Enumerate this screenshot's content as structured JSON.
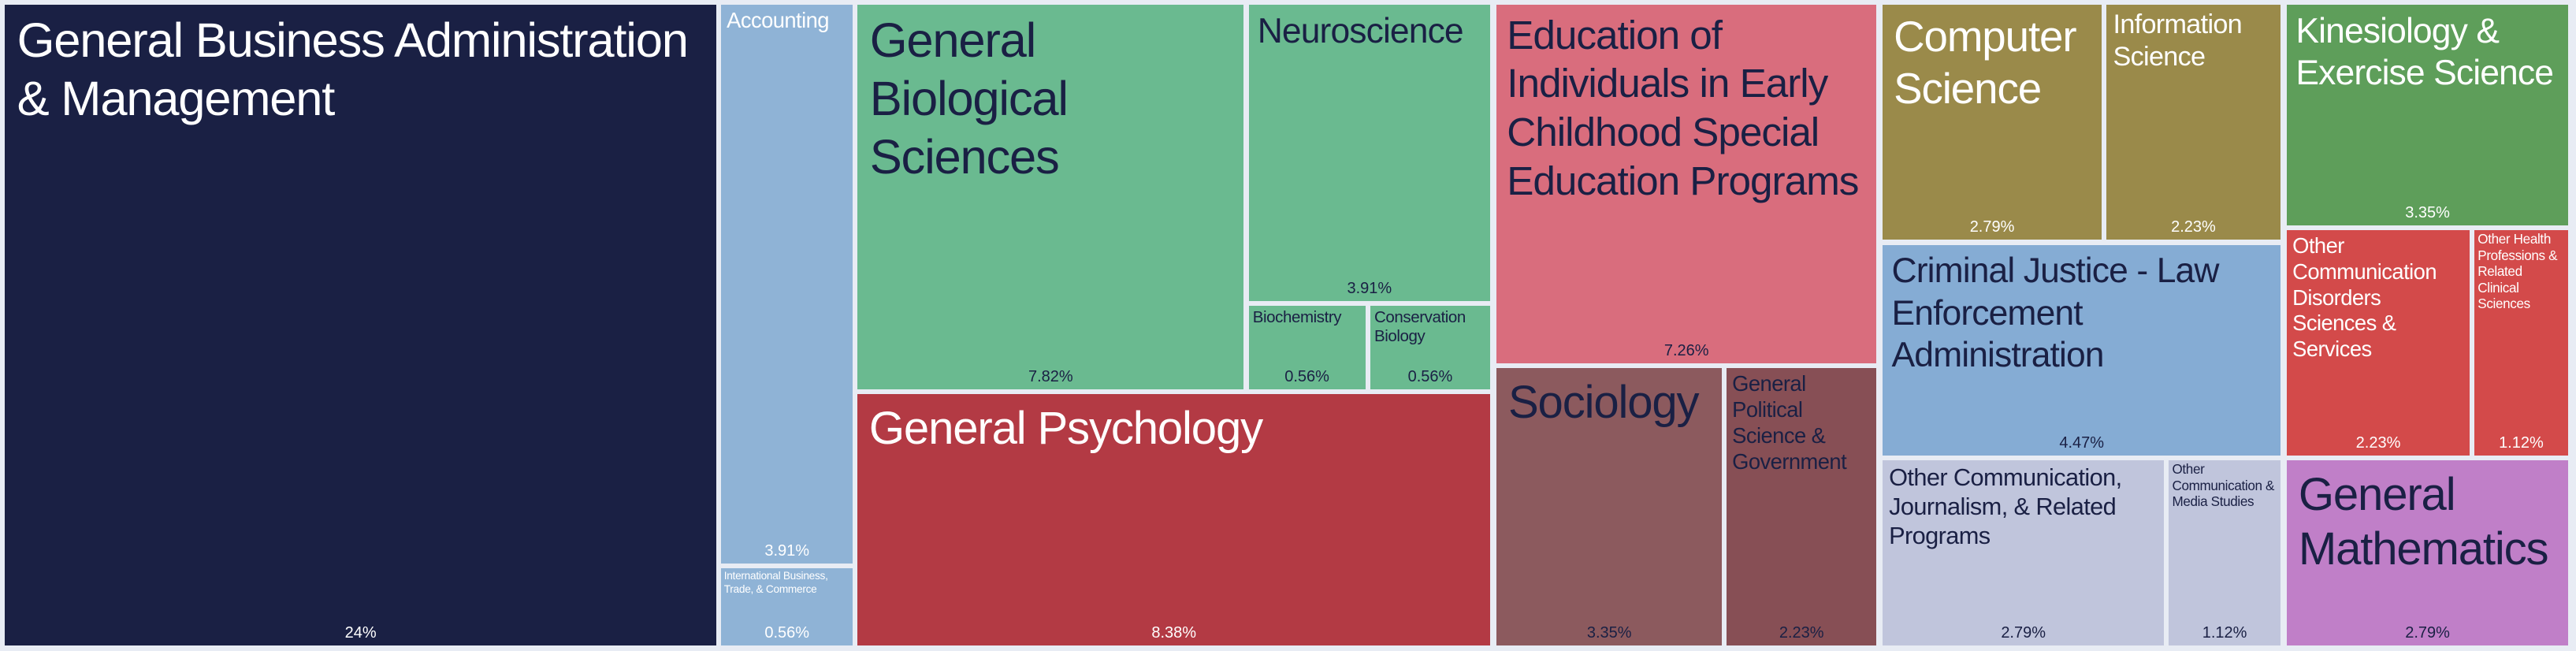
{
  "chart_data": {
    "type": "treemap",
    "items": [
      {
        "name": "General Business Administration & Management",
        "value": 24,
        "value_label": "24%",
        "color": "#1a2044"
      },
      {
        "name": "Accounting",
        "value": 3.91,
        "value_label": "3.91%",
        "color": "#8fb3d6"
      },
      {
        "name": "International Business, Trade, & Commerce",
        "value": 0.56,
        "value_label": "0.56%",
        "color": "#8fb3d6"
      },
      {
        "name": "General Biological Sciences",
        "value": 7.82,
        "value_label": "7.82%",
        "color": "#6aba90"
      },
      {
        "name": "Neuroscience",
        "value": 3.91,
        "value_label": "3.91%",
        "color": "#6aba90"
      },
      {
        "name": "Biochemistry",
        "value": 0.56,
        "value_label": "0.56%",
        "color": "#6aba90"
      },
      {
        "name": "Conservation Biology",
        "value": 0.56,
        "value_label": "0.56%",
        "color": "#6aba90"
      },
      {
        "name": "General Psychology",
        "value": 8.38,
        "value_label": "8.38%",
        "color": "#b33a44"
      },
      {
        "name": "Education of Individuals in Early Childhood Special Education Programs",
        "value": 7.26,
        "value_label": "7.26%",
        "color": "#d96d7d"
      },
      {
        "name": "Sociology",
        "value": 3.35,
        "value_label": "3.35%",
        "color": "#8c5a5e"
      },
      {
        "name": "General Political Science & Government",
        "value": 2.23,
        "value_label": "2.23%",
        "color": "#874f55"
      },
      {
        "name": "Computer Science",
        "value": 2.79,
        "value_label": "2.79%",
        "color": "#9a8a4a"
      },
      {
        "name": "Information Science",
        "value": 2.23,
        "value_label": "2.23%",
        "color": "#9a8a4a"
      },
      {
        "name": "Criminal Justice - Law Enforcement Administration",
        "value": 4.47,
        "value_label": "4.47%",
        "color": "#85acd4"
      },
      {
        "name": "Other Communication, Journalism, & Related Programs",
        "value": 2.79,
        "value_label": "2.79%",
        "color": "#c0c5dc"
      },
      {
        "name": "Other Communication & Media Studies",
        "value": 1.12,
        "value_label": "1.12%",
        "color": "#c0c5dc"
      },
      {
        "name": "Kinesiology & Exercise Science",
        "value": 3.35,
        "value_label": "3.35%",
        "color": "#5e9e5a"
      },
      {
        "name": "Other Communication Disorders Sciences & Services",
        "value": 2.23,
        "value_label": "2.23%",
        "color": "#d34a4a"
      },
      {
        "name": "Other Health Professions & Related Clinical Sciences",
        "value": 1.12,
        "value_label": "1.12%",
        "color": "#d34a4a"
      },
      {
        "name": "General Mathematics",
        "value": 2.79,
        "value_label": "2.79%",
        "color": "#c07fc8"
      }
    ]
  }
}
